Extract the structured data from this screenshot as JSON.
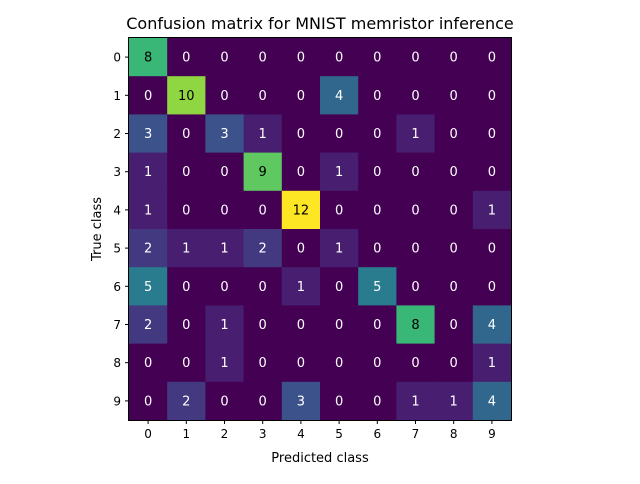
{
  "chart_data": {
    "type": "heatmap",
    "title": "Confusion matrix for MNIST memristor inference",
    "xlabel": "Predicted class",
    "ylabel": "True class",
    "x_ticks": [
      "0",
      "1",
      "2",
      "3",
      "4",
      "5",
      "6",
      "7",
      "8",
      "9"
    ],
    "y_ticks": [
      "0",
      "1",
      "2",
      "3",
      "4",
      "5",
      "6",
      "7",
      "8",
      "9"
    ],
    "values": [
      [
        8,
        0,
        0,
        0,
        0,
        0,
        0,
        0,
        0,
        0
      ],
      [
        0,
        10,
        0,
        0,
        0,
        4,
        0,
        0,
        0,
        0
      ],
      [
        3,
        0,
        3,
        1,
        0,
        0,
        0,
        1,
        0,
        0
      ],
      [
        1,
        0,
        0,
        9,
        0,
        1,
        0,
        0,
        0,
        0
      ],
      [
        1,
        0,
        0,
        0,
        12,
        0,
        0,
        0,
        0,
        1
      ],
      [
        2,
        1,
        1,
        2,
        0,
        1,
        0,
        0,
        0,
        0
      ],
      [
        5,
        0,
        0,
        0,
        1,
        0,
        5,
        0,
        0,
        0
      ],
      [
        2,
        0,
        1,
        0,
        0,
        0,
        0,
        8,
        0,
        4
      ],
      [
        0,
        0,
        1,
        0,
        0,
        0,
        0,
        0,
        0,
        1
      ],
      [
        0,
        2,
        0,
        0,
        3,
        0,
        0,
        1,
        1,
        4
      ]
    ],
    "value_range": [
      0,
      12
    ],
    "colormap": "viridis",
    "grid": false,
    "annotated": true
  }
}
